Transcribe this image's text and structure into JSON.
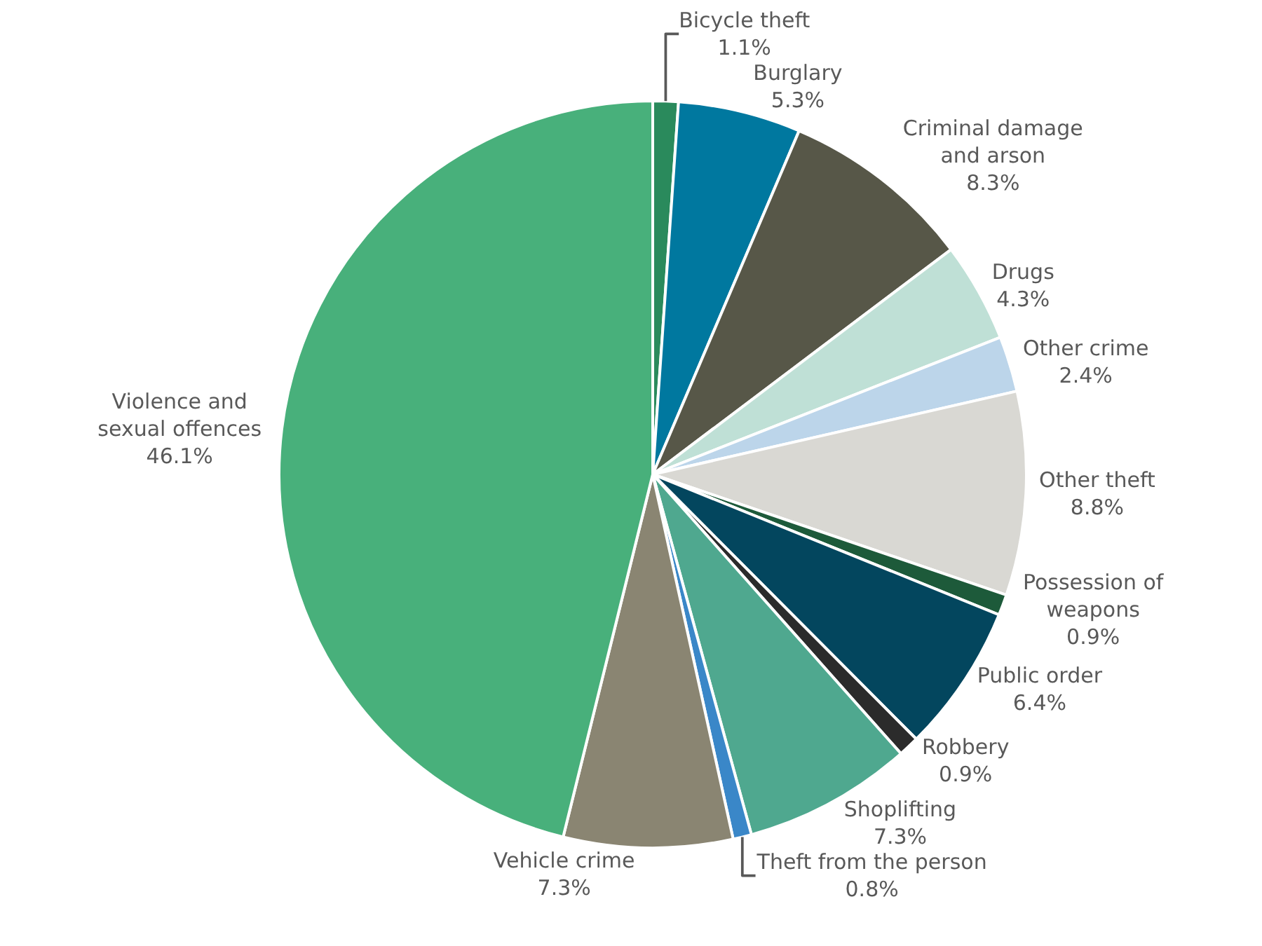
{
  "chart_data": {
    "type": "pie",
    "categories": [
      "Bicycle theft",
      "Burglary",
      "Criminal damage\nand arson",
      "Drugs",
      "Other crime",
      "Other theft",
      "Possession of\nweapons",
      "Public order",
      "Robbery",
      "Shoplifting",
      "Theft from the person",
      "Vehicle crime",
      "Violence and\nsexual offences"
    ],
    "values": [
      1.1,
      5.3,
      8.3,
      4.3,
      2.4,
      8.8,
      0.9,
      6.4,
      0.9,
      7.3,
      0.8,
      7.3,
      46.1
    ],
    "value_labels": [
      "1.1%",
      "5.3%",
      "8.3%",
      "4.3%",
      "2.4%",
      "8.8%",
      "0.9%",
      "6.4%",
      "0.9%",
      "7.3%",
      "0.8%",
      "7.3%",
      "46.1%"
    ],
    "colors": [
      "#2a8a5c",
      "#00789f",
      "#575748",
      "#bfe0d6",
      "#bcd5ea",
      "#d9d8d3",
      "#1d5a3a",
      "#03465e",
      "#2b2b2b",
      "#4fa88f",
      "#3a87c8",
      "#8a8572",
      "#48b07b"
    ],
    "legend": false
  }
}
